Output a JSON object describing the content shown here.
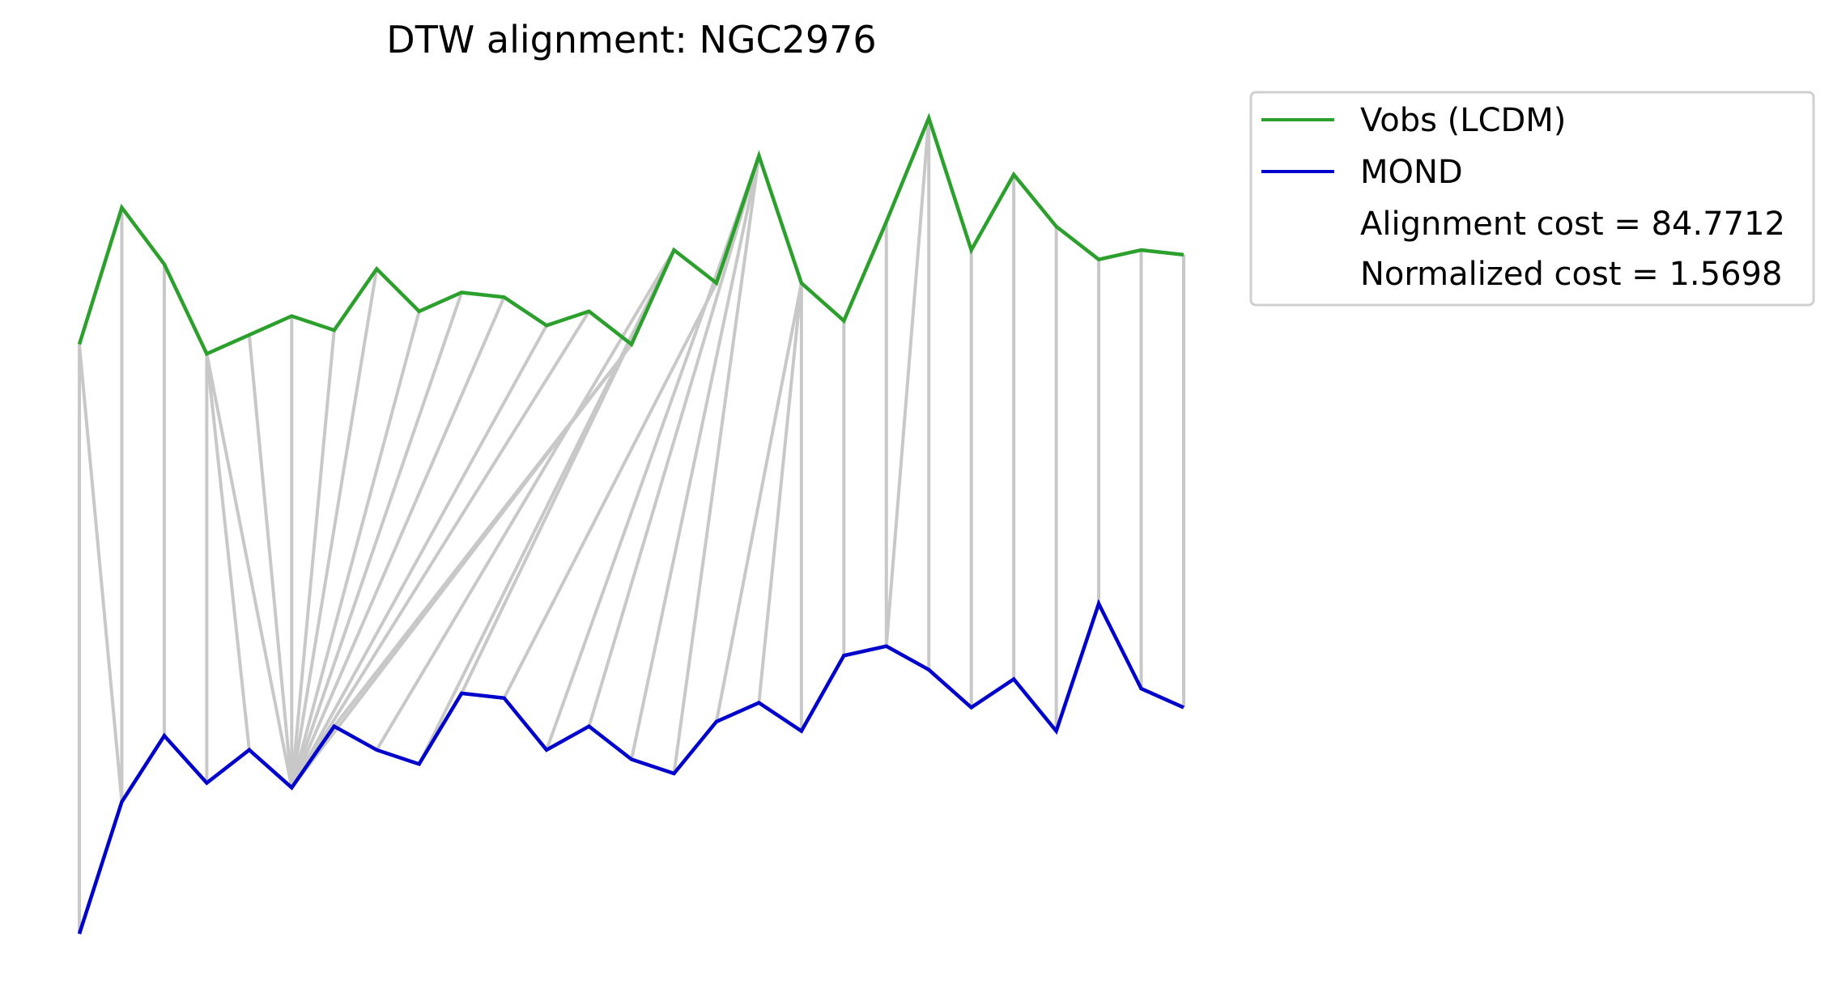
{
  "chart_data": {
    "type": "line",
    "title": "DTW alignment: NGC2976",
    "xlabel": "",
    "ylabel": "",
    "axes_visible": false,
    "grid": false,
    "legend_placement": "outside-top-right",
    "series": [
      {
        "name": "Vobs (LCDM)",
        "color": "#2ca02c",
        "values": [
          4.6,
          7.5,
          6.3,
          4.4,
          4.8,
          5.2,
          4.9,
          6.2,
          5.3,
          5.7,
          5.6,
          5.0,
          5.3,
          4.6,
          6.6,
          5.9,
          8.6,
          5.9,
          5.1,
          7.2,
          9.4,
          6.6,
          8.2,
          7.1,
          6.4,
          6.6,
          6.5
        ]
      },
      {
        "name": "MOND",
        "color": "#0000cc",
        "values": [
          -7.9,
          -5.1,
          -3.7,
          -4.7,
          -4.0,
          -4.8,
          -3.5,
          -4.0,
          -4.3,
          -2.8,
          -2.9,
          -4.0,
          -3.5,
          -4.2,
          -4.5,
          -3.4,
          -3.0,
          -3.6,
          -2.0,
          -1.8,
          -2.3,
          -3.1,
          -2.5,
          -3.6,
          -0.9,
          -2.7,
          -3.1
        ]
      }
    ],
    "alignment_path": [
      [
        0,
        0
      ],
      [
        0,
        1
      ],
      [
        1,
        1
      ],
      [
        2,
        2
      ],
      [
        3,
        3
      ],
      [
        3,
        4
      ],
      [
        3,
        5
      ],
      [
        4,
        5
      ],
      [
        5,
        5
      ],
      [
        6,
        5
      ],
      [
        7,
        5
      ],
      [
        8,
        5
      ],
      [
        9,
        5
      ],
      [
        10,
        5
      ],
      [
        11,
        5
      ],
      [
        12,
        5
      ],
      [
        13,
        5
      ],
      [
        13,
        6
      ],
      [
        14,
        7
      ],
      [
        14,
        8
      ],
      [
        14,
        9
      ],
      [
        15,
        10
      ],
      [
        16,
        11
      ],
      [
        16,
        12
      ],
      [
        16,
        13
      ],
      [
        16,
        14
      ],
      [
        17,
        15
      ],
      [
        17,
        16
      ],
      [
        17,
        17
      ],
      [
        18,
        18
      ],
      [
        19,
        19
      ],
      [
        20,
        19
      ],
      [
        20,
        20
      ],
      [
        21,
        21
      ],
      [
        22,
        22
      ],
      [
        23,
        23
      ],
      [
        24,
        24
      ],
      [
        25,
        25
      ],
      [
        26,
        26
      ]
    ],
    "alignment_color": "#c8c8c8",
    "annotations": [
      "Alignment cost = 84.7712",
      "Normalized cost = 1.5698"
    ]
  }
}
